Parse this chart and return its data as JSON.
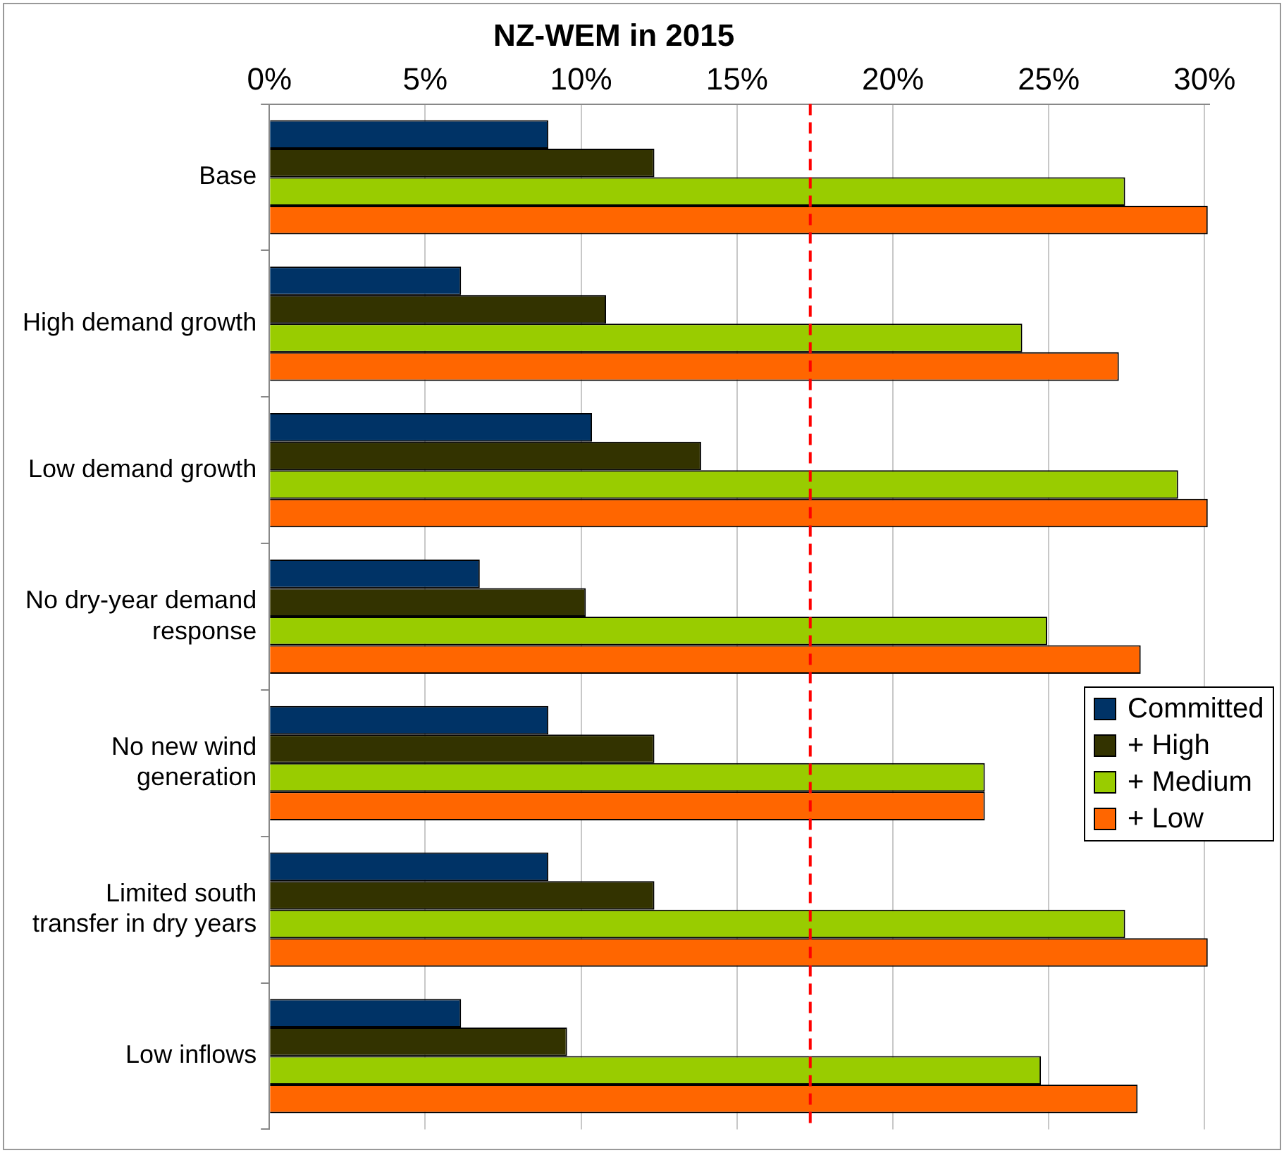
{
  "chart_data": {
    "type": "bar",
    "orientation": "horizontal",
    "title": "NZ-WEM in 2015",
    "categories": [
      "Base",
      "High demand growth",
      "Low demand growth",
      "No dry-year demand response",
      "No new wind generation",
      "Limited south transfer in dry years",
      "Low inflows"
    ],
    "series": [
      {
        "name": "Committed",
        "color": "#003366",
        "values": [
          8.95,
          6.15,
          10.35,
          6.75,
          8.95,
          8.95,
          6.15
        ]
      },
      {
        "name": "+ High",
        "color": "#333300",
        "values": [
          12.35,
          10.8,
          13.85,
          10.15,
          12.35,
          12.35,
          9.55
        ]
      },
      {
        "name": "+ Medium",
        "color": "#99cc00",
        "values": [
          27.45,
          24.15,
          29.15,
          24.95,
          22.95,
          27.45,
          24.75
        ]
      },
      {
        "name": "+ Low",
        "color": "#ff6600",
        "values": [
          30.1,
          27.25,
          30.1,
          27.95,
          22.95,
          30.1,
          27.85
        ]
      }
    ],
    "xlim": [
      0,
      30.15
    ],
    "xticks": [
      {
        "value": 0,
        "label": "0%"
      },
      {
        "value": 5,
        "label": "5%"
      },
      {
        "value": 10,
        "label": "10%"
      },
      {
        "value": 15,
        "label": "15%"
      },
      {
        "value": 20,
        "label": "20%"
      },
      {
        "value": 25,
        "label": "25%"
      },
      {
        "value": 30,
        "label": "30%"
      }
    ],
    "ref_lines": [
      {
        "axis": "x",
        "value": 17.35,
        "color": "#ff0000",
        "line_style": "dashed"
      }
    ],
    "grid": "x",
    "legend": "right"
  }
}
